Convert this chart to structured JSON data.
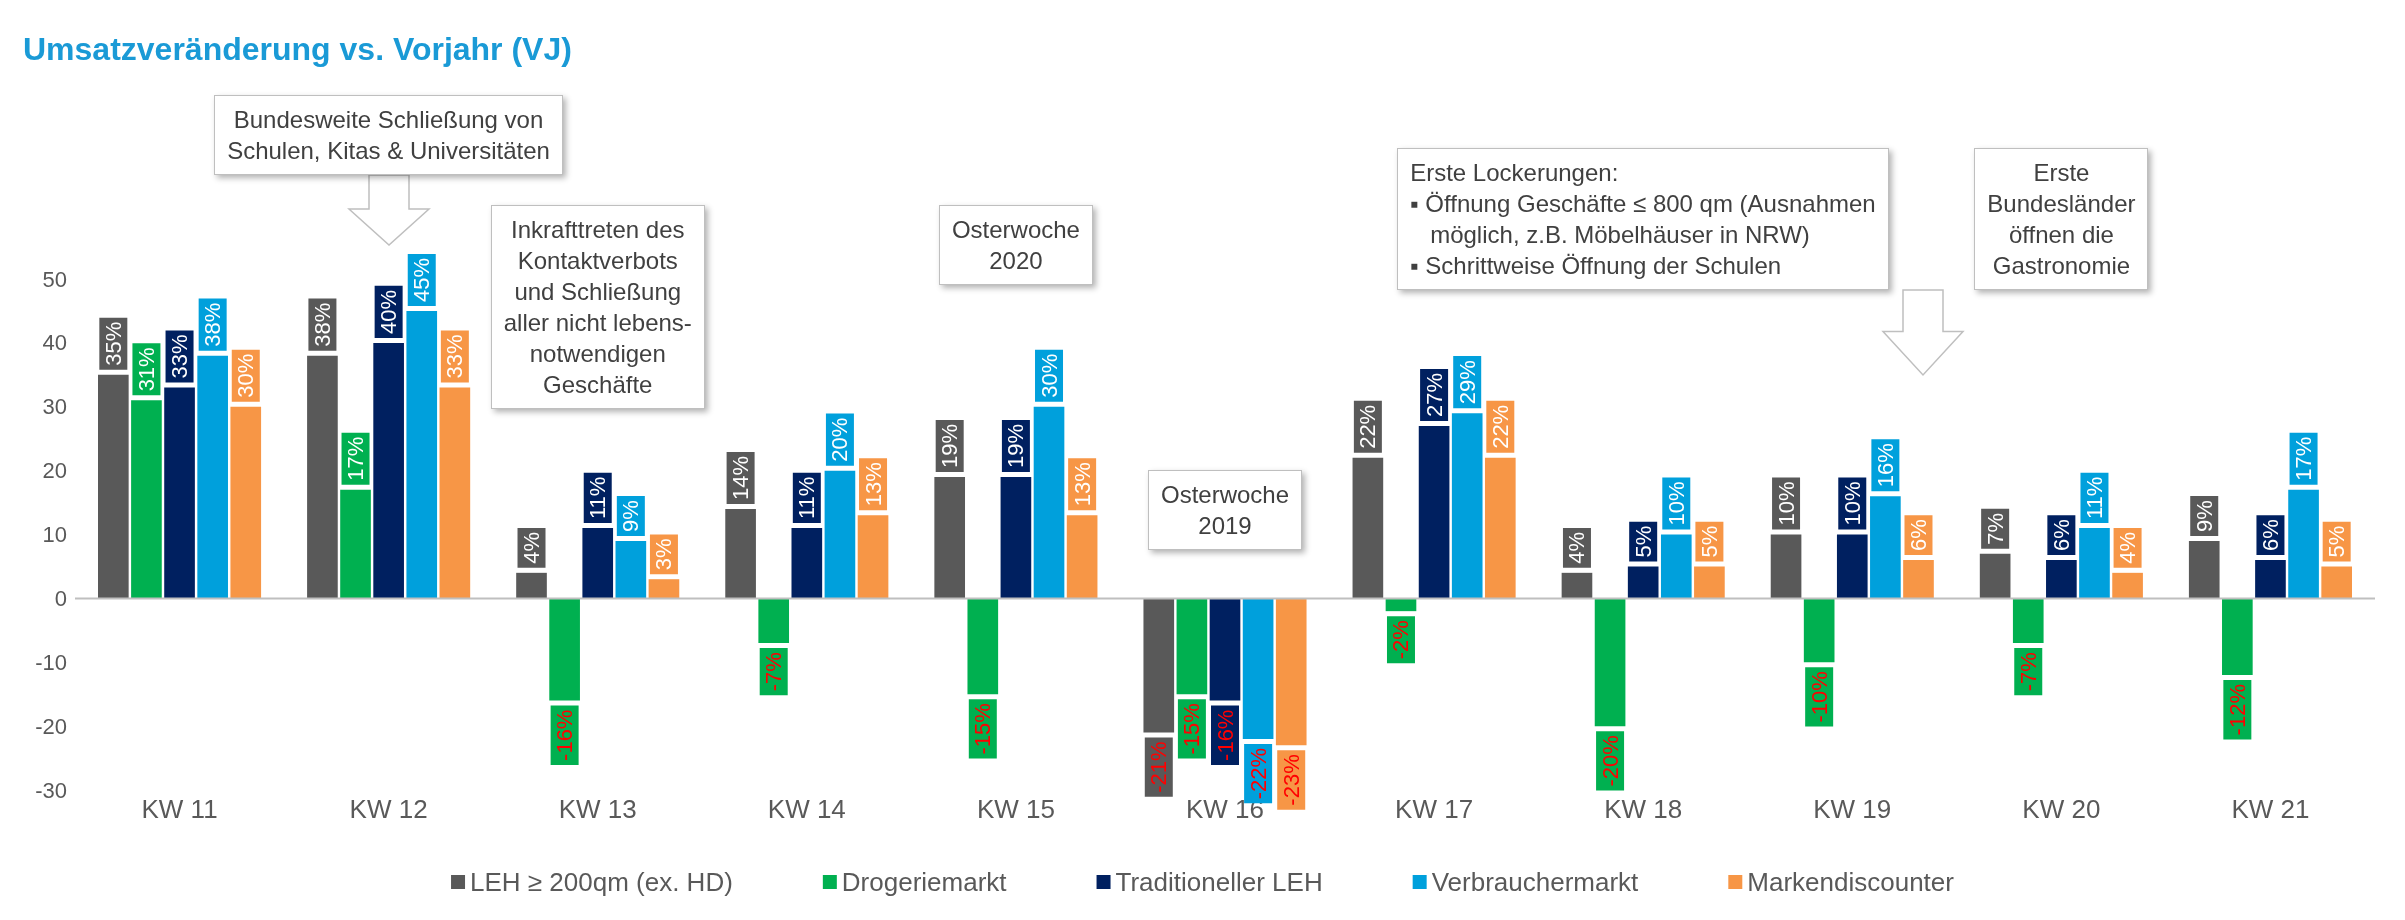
{
  "chart_data": {
    "type": "bar",
    "title": "Umsatzveränderung vs. Vorjahr (VJ)",
    "categories": [
      "KW 11",
      "KW 12",
      "KW 13",
      "KW 14",
      "KW 15",
      "KW 16",
      "KW 17",
      "KW 18",
      "KW 19",
      "KW 20",
      "KW 21"
    ],
    "series": [
      {
        "name": "LEH ≥ 200qm (ex. HD)",
        "color": "#595959",
        "values": [
          35,
          38,
          4,
          14,
          19,
          -21,
          22,
          4,
          10,
          7,
          9
        ],
        "value_labels": [
          "35%",
          "38%",
          "4%",
          "14%",
          "19%",
          "-21%",
          "22%",
          "4%",
          "10%",
          "7%",
          "9%"
        ]
      },
      {
        "name": "Drogeriemarkt",
        "color": "#00b050",
        "values": [
          31,
          17,
          -16,
          -7,
          -15,
          -15,
          -2,
          -20,
          -10,
          -7,
          -12
        ],
        "value_labels": [
          "31%",
          "17%",
          "-16%",
          "-7%",
          "-15%",
          "-15%",
          "-2%",
          "-20%",
          "-10%",
          "-7%",
          "-12%"
        ]
      },
      {
        "name": "Traditioneller LEH",
        "color": "#002060",
        "values": [
          33,
          40,
          11,
          11,
          19,
          -16,
          27,
          5,
          10,
          6,
          6
        ],
        "value_labels": [
          "33%",
          "40%",
          "11%",
          "11%",
          "19%",
          "-16%",
          "27%",
          "5%",
          "10%",
          "6%",
          "6%"
        ]
      },
      {
        "name": "Verbrauchermarkt",
        "color": "#00a0dc",
        "values": [
          38,
          45,
          9,
          20,
          30,
          -22,
          29,
          10,
          16,
          11,
          17
        ],
        "value_labels": [
          "38%",
          "45%",
          "9%",
          "20%",
          "30%",
          "-22%",
          "29%",
          "10%",
          "16%",
          "11%",
          "17%"
        ]
      },
      {
        "name": "Markendiscounter",
        "color": "#f79646",
        "values": [
          30,
          33,
          3,
          13,
          13,
          -23,
          22,
          5,
          6,
          4,
          5
        ],
        "value_labels": [
          "30%",
          "33%",
          "3%",
          "13%",
          "13%",
          "-23%",
          "22%",
          "5%",
          "6%",
          "4%",
          "5%"
        ]
      }
    ],
    "ylim": [
      -30,
      50
    ],
    "yticks": [
      -30,
      -20,
      -10,
      0,
      10,
      20,
      30,
      40,
      50
    ],
    "legend": "bottom",
    "annotations": [
      "Bundesweite Schließung von\nSchulen, Kitas & Universitäten",
      "Inkrafttreten des\nKontaktverbots\nund Schließung\naller nicht lebens-\nnotwendigen\nGeschäfte",
      "Osterwoche\n2020",
      "Osterwoche\n2019",
      "Erste Lockerungen:\n▪ Öffnung Geschäfte ≤ 800 qm (Ausnahmen\n   möglich, z.B. Möbelhäuser in NRW)\n▪ Schrittweise Öffnung der Schulen",
      "Erste\nBundesländer\nöffnen die\nGastronomie"
    ]
  }
}
